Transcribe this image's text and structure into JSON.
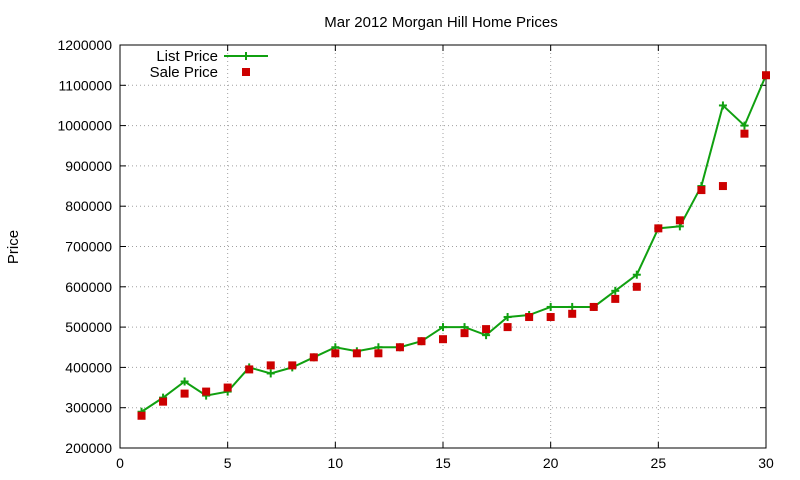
{
  "chart_data": {
    "type": "line",
    "title": "Mar 2012 Morgan Hill Home Prices",
    "xlabel": "",
    "ylabel": "Price",
    "xlim": [
      0,
      30
    ],
    "ylim": [
      200000,
      1200000
    ],
    "x_ticks": [
      0,
      5,
      10,
      15,
      20,
      25,
      30
    ],
    "y_ticks": [
      200000,
      300000,
      400000,
      500000,
      600000,
      700000,
      800000,
      900000,
      1000000,
      1100000,
      1200000
    ],
    "grid": true,
    "legend_position": "top-left",
    "x": [
      1,
      2,
      3,
      4,
      5,
      6,
      7,
      8,
      9,
      10,
      11,
      12,
      13,
      14,
      15,
      16,
      17,
      18,
      19,
      20,
      21,
      22,
      23,
      24,
      25,
      26,
      27,
      28,
      29,
      30
    ],
    "series": [
      {
        "name": "List Price",
        "style": "line-plus",
        "color": "#10a010",
        "values": [
          290000,
          325000,
          365000,
          330000,
          340000,
          400000,
          385000,
          400000,
          425000,
          450000,
          440000,
          450000,
          450000,
          465000,
          500000,
          500000,
          480000,
          525000,
          530000,
          550000,
          550000,
          550000,
          590000,
          630000,
          745000,
          750000,
          850000,
          1050000,
          1000000,
          1125000
        ]
      },
      {
        "name": "Sale Price",
        "style": "square-markers",
        "color": "#cc0000",
        "values": [
          280000,
          315000,
          335000,
          340000,
          350000,
          395000,
          405000,
          405000,
          425000,
          435000,
          435000,
          435000,
          450000,
          465000,
          470000,
          485000,
          495000,
          500000,
          525000,
          525000,
          533000,
          550000,
          570000,
          600000,
          745000,
          765000,
          840000,
          850000,
          980000,
          1125000
        ]
      }
    ]
  }
}
